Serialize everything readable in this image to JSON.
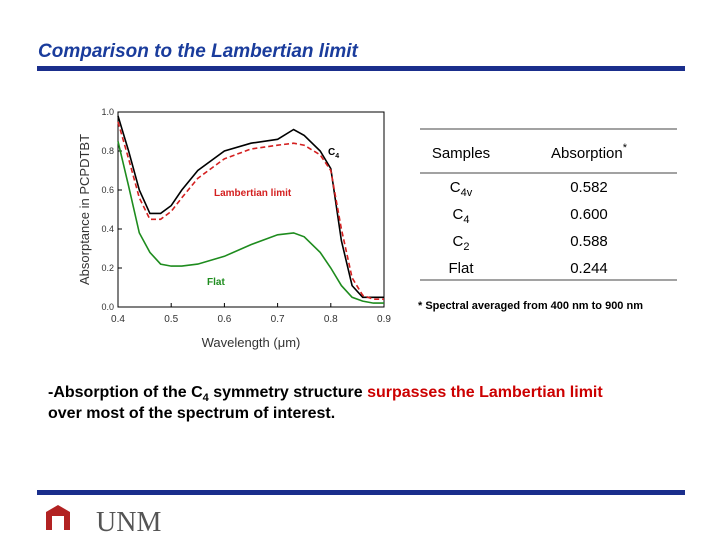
{
  "header": {
    "title": "Comparison to the Lambertian limit"
  },
  "chart_data": {
    "type": "line",
    "ylabel": "Absorptance in PCPDTBT",
    "xlabel": "Wavelength (μm)",
    "x": [
      0.4,
      0.42,
      0.44,
      0.46,
      0.48,
      0.5,
      0.52,
      0.55,
      0.6,
      0.65,
      0.7,
      0.73,
      0.75,
      0.78,
      0.8,
      0.82,
      0.84,
      0.86,
      0.88,
      0.9
    ],
    "series": [
      {
        "name": "C",
        "name_sub": "4",
        "color": "#000000",
        "dash": false,
        "values": [
          0.98,
          0.8,
          0.6,
          0.48,
          0.48,
          0.52,
          0.6,
          0.7,
          0.8,
          0.84,
          0.86,
          0.91,
          0.88,
          0.8,
          0.71,
          0.34,
          0.11,
          0.05,
          0.05,
          0.05
        ]
      },
      {
        "name": "Lambertian limit",
        "color": "#d42020",
        "dash": true,
        "values": [
          0.95,
          0.76,
          0.56,
          0.45,
          0.45,
          0.49,
          0.56,
          0.66,
          0.76,
          0.81,
          0.83,
          0.84,
          0.83,
          0.78,
          0.7,
          0.4,
          0.15,
          0.06,
          0.04,
          0.04
        ]
      },
      {
        "name": "Flat",
        "color": "#1e8c1e",
        "dash": false,
        "values": [
          0.85,
          0.62,
          0.38,
          0.28,
          0.22,
          0.21,
          0.21,
          0.22,
          0.26,
          0.32,
          0.37,
          0.38,
          0.36,
          0.28,
          0.2,
          0.11,
          0.05,
          0.03,
          0.02,
          0.02
        ]
      }
    ],
    "xlim": [
      0.4,
      0.9
    ],
    "xticks": [
      0.4,
      0.5,
      0.6,
      0.7,
      0.8,
      0.9
    ],
    "ylim": [
      0,
      1
    ],
    "yticks": [
      {
        "value": 0,
        "label": "0.0"
      },
      0.2,
      0.4,
      0.6,
      0.8,
      {
        "value": 1,
        "label": "1.0"
      }
    ]
  },
  "table": {
    "header": [
      {
        "text": "Samples"
      },
      {
        "text": "Absorption",
        "sup": "*"
      }
    ],
    "rows": [
      [
        {
          "text": "C",
          "sub": "4v"
        },
        {
          "text": "0.582"
        }
      ],
      [
        {
          "text": "C",
          "sub": "4"
        },
        {
          "text": "0.600"
        }
      ],
      [
        {
          "text": "C",
          "sub": "2"
        },
        {
          "text": "0.588"
        }
      ],
      [
        {
          "text": "Flat"
        },
        {
          "text": "0.244"
        }
      ]
    ],
    "note": "* Spectral averaged from 400 nm to 900 nm"
  },
  "bullet": {
    "lines": [
      [
        {
          "text": "-Absorption of the C"
        },
        {
          "text": "4",
          "sub": true
        },
        {
          "text": " symmetry structure "
        },
        {
          "text": "surpasses the Lambertian limit",
          "color": "#cc0000"
        }
      ],
      [
        {
          "text": "over most of the spectrum of interest."
        }
      ]
    ]
  },
  "logo": {
    "text": "UNM"
  }
}
